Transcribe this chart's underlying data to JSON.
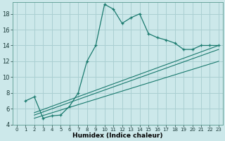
{
  "xlabel": "Humidex (Indice chaleur)",
  "bg_color": "#cce8ea",
  "grid_color": "#aacfd2",
  "line_color": "#1a7a6e",
  "xlim": [
    -0.5,
    23.5
  ],
  "ylim": [
    4,
    19.5
  ],
  "xticks": [
    0,
    1,
    2,
    3,
    4,
    5,
    6,
    7,
    8,
    9,
    10,
    11,
    12,
    13,
    14,
    15,
    16,
    17,
    18,
    19,
    20,
    21,
    22,
    23
  ],
  "yticks": [
    4,
    6,
    8,
    10,
    12,
    14,
    16,
    18
  ],
  "curve1_x": [
    1,
    2,
    3,
    4,
    5,
    6,
    7,
    8,
    9,
    10,
    11,
    12,
    13,
    14,
    15,
    16,
    17,
    18,
    19,
    20,
    21,
    22,
    23
  ],
  "curve1_y": [
    7.0,
    7.5,
    4.8,
    5.1,
    5.2,
    6.3,
    8.0,
    12.0,
    14.0,
    19.2,
    18.6,
    16.8,
    17.5,
    18.0,
    15.5,
    15.0,
    14.7,
    14.3,
    13.5,
    13.5,
    14.0,
    14.0,
    14.0
  ],
  "line1_x": [
    2,
    23
  ],
  "line1_y": [
    5.5,
    14.0
  ],
  "line2_x": [
    2,
    23
  ],
  "line2_y": [
    5.2,
    13.5
  ],
  "line3_x": [
    2,
    23
  ],
  "line3_y": [
    4.8,
    12.0
  ]
}
